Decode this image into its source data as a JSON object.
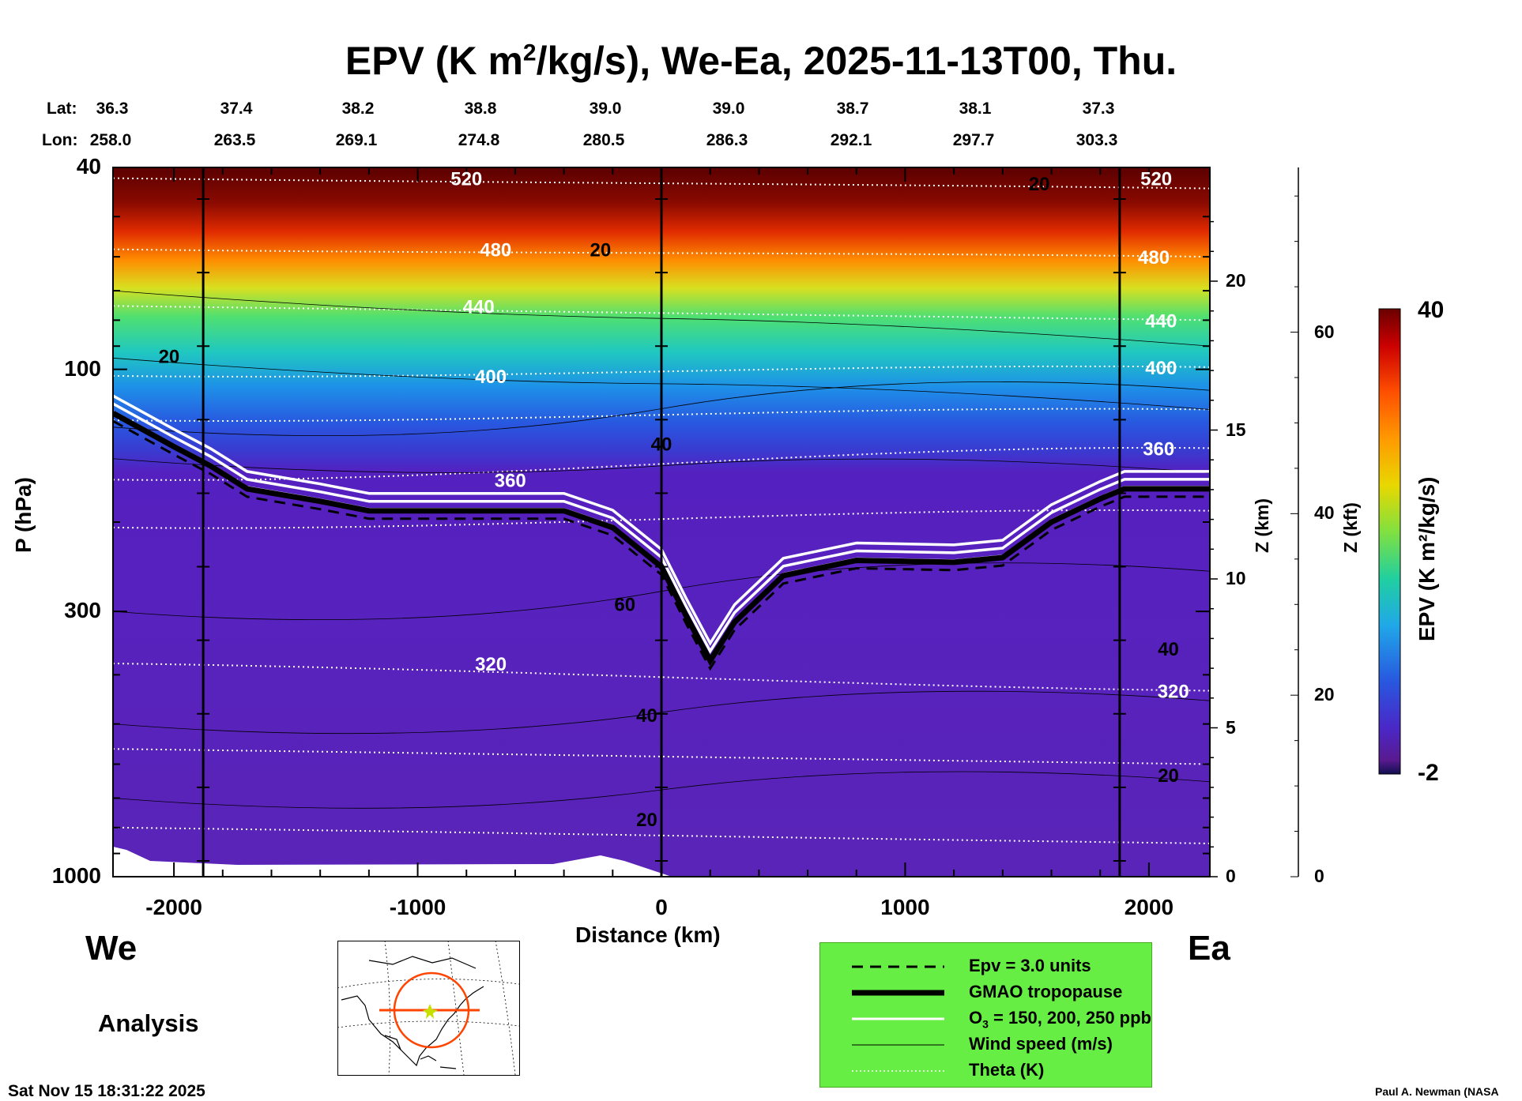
{
  "title": {
    "pre": "EPV (K m",
    "sup": "2",
    "post": "/kg/s), We-Ea, 2025-11-13T00, Thu."
  },
  "lat_label": "Lat:",
  "lon_label": "Lon:",
  "lats": [
    "36.3",
    "37.4",
    "38.2",
    "38.8",
    "39.0",
    "39.0",
    "38.7",
    "38.1",
    "37.3"
  ],
  "lons": [
    "258.0",
    "263.5",
    "269.1",
    "274.8",
    "280.5",
    "286.3",
    "292.1",
    "297.7",
    "303.3"
  ],
  "axes": {
    "ylabel": "P (hPa)",
    "y_ticks": [
      "40",
      "100",
      "300",
      "1000"
    ],
    "xlabel": "Distance (km)",
    "x_ticks": [
      "-2000",
      "-1000",
      "0",
      "1000",
      "2000"
    ],
    "zkm_label": "Z (km)",
    "zkm_ticks": [
      "20",
      "15",
      "10",
      "5",
      "0"
    ],
    "zkft_label": "Z (kft)",
    "zkft_ticks": [
      "60",
      "40",
      "20",
      "0"
    ]
  },
  "west": "We",
  "east": "Ea",
  "analysis": "Analysis",
  "timestamp": "Sat Nov 15 18:31:22 2025",
  "credit": "Paul A. Newman (NASA",
  "colorbar": {
    "label": "EPV (K m²/kg/s)",
    "max": "40",
    "min": "-2"
  },
  "legend": {
    "epv": "Epv = 3.0 units",
    "trop": "GMAO tropopause",
    "o3_pre": "O",
    "o3_sub": "3",
    "o3_post": " = 150, 200, 250 ppb",
    "wind": "Wind speed (m/s)",
    "theta": "Theta (K)"
  },
  "contour_labels": {
    "theta": [
      "520",
      "480",
      "440",
      "400",
      "360",
      "320",
      "520",
      "480",
      "440",
      "400",
      "360",
      "320"
    ],
    "wind": [
      "20",
      "20",
      "40",
      "60",
      "40",
      "20",
      "20",
      "40",
      "20"
    ]
  },
  "chart_data": {
    "type": "heatmap",
    "title": "EPV (K m²/kg/s), We-Ea, 2025-11-13T00, Thu.",
    "xlabel": "Distance (km)",
    "ylabel": "P (hPa)",
    "xlim": [
      -2250,
      2250
    ],
    "ylim": [
      1000,
      40
    ],
    "yscale": "log",
    "colorbar": {
      "label": "EPV (K m²/kg/s)",
      "range": [
        -2,
        40
      ]
    },
    "tropopause": {
      "x": [
        -2250,
        -2000,
        -1850,
        -1700,
        -1400,
        -1200,
        -800,
        -400,
        -200,
        0,
        100,
        200,
        300,
        500,
        800,
        1200,
        1400,
        1600,
        1800,
        1900,
        2250
      ],
      "p_hPa": [
        122,
        142,
        155,
        172,
        182,
        190,
        190,
        190,
        205,
        245,
        305,
        375,
        315,
        255,
        238,
        240,
        235,
        200,
        180,
        172,
        172
      ]
    },
    "theta_labels": [
      {
        "K": 520,
        "x": -800,
        "p_hPa": 42
      },
      {
        "K": 480,
        "x": -680,
        "p_hPa": 58
      },
      {
        "K": 440,
        "x": -750,
        "p_hPa": 75
      },
      {
        "K": 400,
        "x": -700,
        "p_hPa": 103
      },
      {
        "K": 360,
        "x": -620,
        "p_hPa": 165
      },
      {
        "K": 320,
        "x": -700,
        "p_hPa": 380
      },
      {
        "K": 520,
        "x": 2030,
        "p_hPa": 42
      },
      {
        "K": 480,
        "x": 2020,
        "p_hPa": 60
      },
      {
        "K": 440,
        "x": 2050,
        "p_hPa": 80
      },
      {
        "K": 400,
        "x": 2050,
        "p_hPa": 99
      },
      {
        "K": 360,
        "x": 2040,
        "p_hPa": 143
      },
      {
        "K": 320,
        "x": 2100,
        "p_hPa": 430
      }
    ],
    "wind_labels": [
      {
        "ms": 20,
        "x": -2020,
        "p_hPa": 94
      },
      {
        "ms": 20,
        "x": -250,
        "p_hPa": 58
      },
      {
        "ms": 40,
        "x": 0,
        "p_hPa": 140
      },
      {
        "ms": 60,
        "x": -150,
        "p_hPa": 290
      },
      {
        "ms": 40,
        "x": -60,
        "p_hPa": 480
      },
      {
        "ms": 20,
        "x": -60,
        "p_hPa": 770
      },
      {
        "ms": 20,
        "x": 1550,
        "p_hPa": 43
      },
      {
        "ms": 40,
        "x": 2080,
        "p_hPa": 355
      },
      {
        "ms": 20,
        "x": 2080,
        "p_hPa": 630
      }
    ]
  }
}
